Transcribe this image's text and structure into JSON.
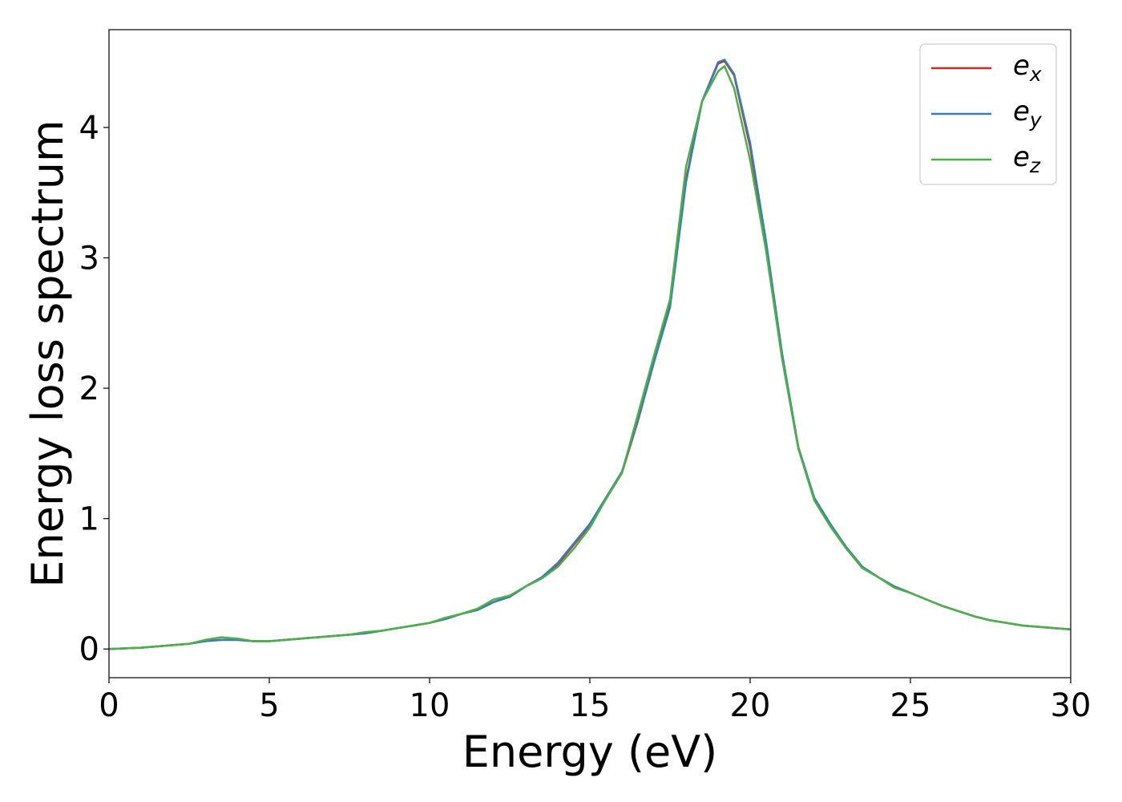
{
  "chart_data": {
    "type": "line",
    "title": "",
    "xlabel": "Energy (eV)",
    "ylabel": "Energy loss spectrum",
    "xlim": [
      0,
      30
    ],
    "ylim": [
      -0.22,
      4.75
    ],
    "xticks": [
      0,
      5,
      10,
      15,
      20,
      25,
      30
    ],
    "yticks": [
      0,
      1,
      2,
      3,
      4
    ],
    "grid": false,
    "legend_position": "top-right",
    "x": [
      0,
      1,
      2,
      2.5,
      3,
      3.5,
      4,
      4.5,
      5,
      5.5,
      6,
      6.5,
      7,
      7.5,
      8,
      8.5,
      9,
      9.5,
      10,
      10.5,
      11,
      11.5,
      12,
      12.5,
      13,
      13.5,
      14,
      14.5,
      15,
      15.5,
      16,
      16.5,
      17,
      17.5,
      18,
      18.5,
      19,
      19.2,
      19.5,
      20,
      20.5,
      21,
      21.5,
      22,
      22.5,
      23,
      23.5,
      24,
      24.5,
      25,
      25.5,
      26,
      26.5,
      27,
      27.5,
      28,
      28.5,
      29,
      29.5,
      30
    ],
    "series": [
      {
        "label_base": "e",
        "label_sub": "x",
        "color": "#d62728",
        "values": [
          0,
          0.01,
          0.03,
          0.04,
          0.06,
          0.07,
          0.07,
          0.06,
          0.06,
          0.07,
          0.08,
          0.09,
          0.1,
          0.11,
          0.12,
          0.14,
          0.16,
          0.18,
          0.2,
          0.23,
          0.27,
          0.3,
          0.36,
          0.4,
          0.48,
          0.55,
          0.65,
          0.8,
          0.95,
          1.15,
          1.35,
          1.75,
          2.2,
          2.65,
          3.6,
          4.2,
          4.49,
          4.51,
          4.4,
          3.85,
          3.1,
          2.25,
          1.55,
          1.15,
          0.95,
          0.78,
          0.63,
          0.55,
          0.48,
          0.43,
          0.38,
          0.33,
          0.29,
          0.25,
          0.22,
          0.2,
          0.18,
          0.17,
          0.16,
          0.15
        ]
      },
      {
        "label_base": "e",
        "label_sub": "y",
        "color": "#377eb8",
        "values": [
          0,
          0.01,
          0.03,
          0.04,
          0.06,
          0.07,
          0.07,
          0.06,
          0.06,
          0.07,
          0.08,
          0.09,
          0.1,
          0.11,
          0.12,
          0.14,
          0.16,
          0.18,
          0.2,
          0.23,
          0.27,
          0.3,
          0.36,
          0.4,
          0.48,
          0.55,
          0.66,
          0.81,
          0.96,
          1.16,
          1.36,
          1.76,
          2.2,
          2.62,
          3.58,
          4.2,
          4.5,
          4.52,
          4.41,
          3.88,
          3.12,
          2.26,
          1.55,
          1.16,
          0.96,
          0.78,
          0.63,
          0.55,
          0.48,
          0.43,
          0.38,
          0.33,
          0.29,
          0.25,
          0.22,
          0.2,
          0.18,
          0.17,
          0.16,
          0.15
        ]
      },
      {
        "label_base": "e",
        "label_sub": "z",
        "color": "#4daf4a",
        "values": [
          0,
          0.01,
          0.03,
          0.04,
          0.07,
          0.09,
          0.08,
          0.06,
          0.06,
          0.07,
          0.08,
          0.09,
          0.1,
          0.11,
          0.13,
          0.14,
          0.16,
          0.18,
          0.2,
          0.24,
          0.27,
          0.31,
          0.38,
          0.41,
          0.48,
          0.54,
          0.63,
          0.77,
          0.93,
          1.15,
          1.35,
          1.8,
          2.25,
          2.68,
          3.7,
          4.2,
          4.43,
          4.47,
          4.3,
          3.75,
          3.05,
          2.22,
          1.54,
          1.14,
          0.94,
          0.77,
          0.62,
          0.55,
          0.47,
          0.43,
          0.38,
          0.33,
          0.29,
          0.25,
          0.22,
          0.2,
          0.18,
          0.17,
          0.16,
          0.15
        ]
      }
    ]
  }
}
